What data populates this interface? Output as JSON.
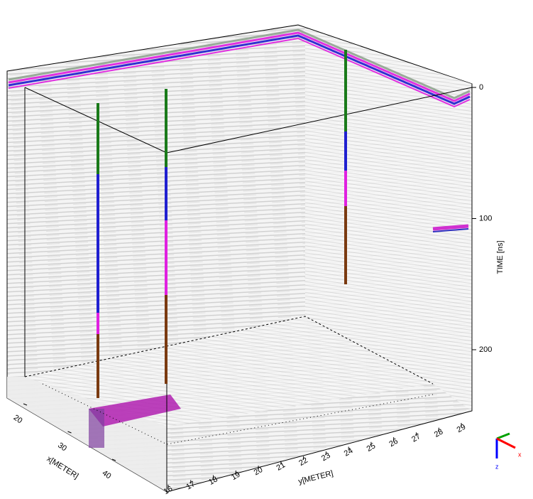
{
  "plot": {
    "time_axis": {
      "label": "TIME [ns]",
      "ticks": [
        0,
        100,
        200
      ]
    },
    "y_axis": {
      "label": "y[METER]",
      "ticks": [
        16,
        17,
        18,
        19,
        20,
        21,
        22,
        23,
        24,
        25,
        26,
        27,
        28,
        29
      ]
    },
    "x_axis": {
      "label": "x[METER]",
      "ticks": [
        20,
        30,
        40
      ]
    },
    "triad": {
      "x": "x",
      "z": "z"
    }
  }
}
